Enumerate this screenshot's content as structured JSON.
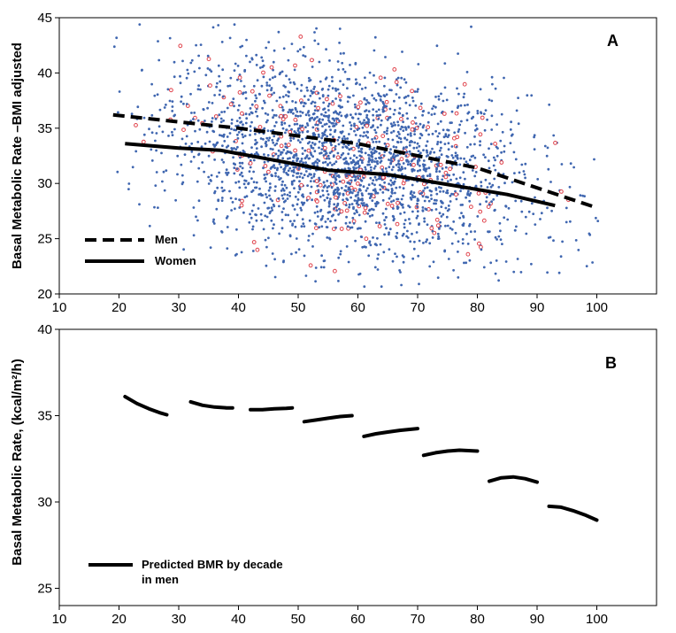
{
  "chart_data": [
    {
      "panel": "A",
      "type": "scatter",
      "panel_label": "A",
      "ylabel": "Basal Metabolic Rate –BMI adjusted",
      "xlabel": "",
      "xlim": [
        10,
        110
      ],
      "ylim": [
        20,
        45
      ],
      "x_ticks": [
        10,
        20,
        30,
        40,
        50,
        60,
        70,
        80,
        90,
        100
      ],
      "y_ticks": [
        20,
        25,
        30,
        35,
        40,
        45
      ],
      "point_colors": {
        "main": "#3f66b0",
        "highlight": "#e0414a"
      },
      "scatter_summary": {
        "x_range": [
          19,
          101
        ],
        "y_range": [
          20.5,
          44.5
        ],
        "center_age": 58,
        "center_bmr": 32.5
      },
      "series": [
        {
          "name": "Men",
          "style": "dashed",
          "x": [
            19,
            40,
            60,
            80,
            100
          ],
          "y": [
            36.2,
            35.0,
            33.6,
            31.4,
            27.8
          ]
        },
        {
          "name": "Women",
          "style": "solid",
          "x": [
            21,
            30,
            37,
            45,
            55,
            65,
            75,
            85,
            93
          ],
          "y": [
            33.6,
            33.2,
            33.0,
            32.2,
            31.2,
            30.8,
            29.9,
            29.0,
            28.0
          ]
        }
      ],
      "legend": [
        {
          "label": "Men",
          "style": "dashed"
        },
        {
          "label": "Women",
          "style": "solid"
        }
      ]
    },
    {
      "panel": "B",
      "type": "line",
      "panel_label": "B",
      "ylabel": "Basal Metabolic Rate, (kcal/m²/h)",
      "xlabel": "",
      "xlim": [
        10,
        110
      ],
      "ylim": [
        24,
        40
      ],
      "x_ticks": [
        10,
        20,
        30,
        40,
        50,
        60,
        70,
        80,
        90,
        100
      ],
      "y_ticks": [
        25,
        30,
        35,
        40
      ],
      "series": [
        {
          "name": "20s",
          "x": [
            21,
            23,
            25,
            27,
            28
          ],
          "y": [
            36.1,
            35.7,
            35.4,
            35.15,
            35.05
          ]
        },
        {
          "name": "30s",
          "x": [
            32,
            34,
            36,
            38,
            39
          ],
          "y": [
            35.8,
            35.6,
            35.5,
            35.45,
            35.45
          ]
        },
        {
          "name": "40s",
          "x": [
            42,
            44,
            46,
            48,
            49
          ],
          "y": [
            35.35,
            35.35,
            35.4,
            35.42,
            35.45
          ]
        },
        {
          "name": "50s",
          "x": [
            51,
            53,
            55,
            57,
            59
          ],
          "y": [
            34.65,
            34.75,
            34.85,
            34.95,
            35.0
          ]
        },
        {
          "name": "60s",
          "x": [
            61,
            63,
            65,
            67,
            70
          ],
          "y": [
            33.8,
            33.95,
            34.05,
            34.15,
            34.25
          ]
        },
        {
          "name": "70s",
          "x": [
            71,
            73,
            75,
            77,
            80
          ],
          "y": [
            32.7,
            32.85,
            32.95,
            33.0,
            32.95
          ]
        },
        {
          "name": "80s",
          "x": [
            82,
            84,
            86,
            88,
            90
          ],
          "y": [
            31.2,
            31.4,
            31.45,
            31.35,
            31.15
          ]
        },
        {
          "name": "90s",
          "x": [
            92,
            94,
            96,
            98,
            100
          ],
          "y": [
            29.75,
            29.7,
            29.5,
            29.25,
            28.95
          ]
        }
      ],
      "legend": [
        {
          "label_line1": "Predicted BMR by decade",
          "label_line2": "in men",
          "style": "solid"
        }
      ]
    }
  ]
}
